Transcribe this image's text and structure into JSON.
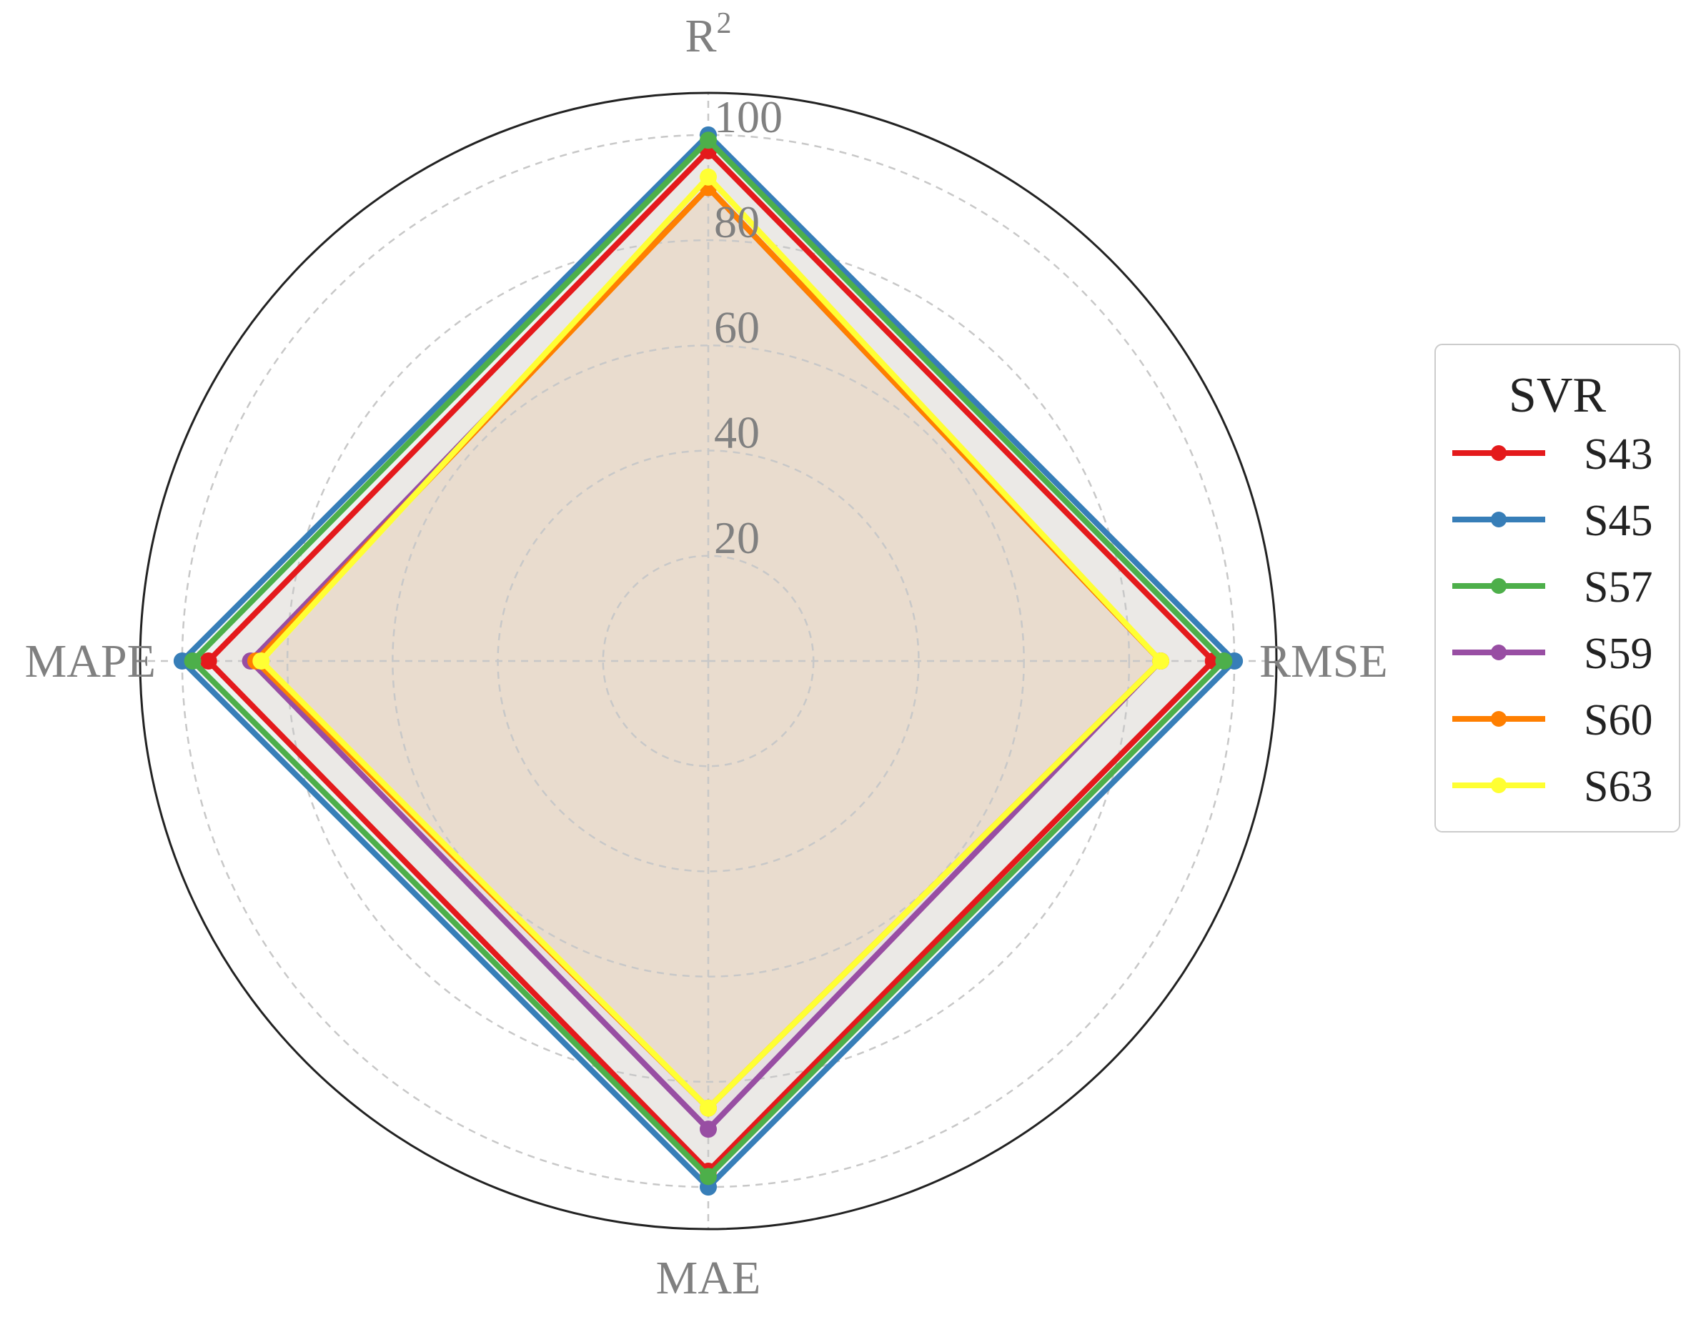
{
  "chart_data": {
    "type": "radar",
    "axes": [
      "R",
      "RMSE",
      "MAE",
      "MAPE"
    ],
    "axis_superscripts": [
      "2",
      "",
      "",
      ""
    ],
    "rlim": [
      0,
      108
    ],
    "rticks": [
      20,
      40,
      60,
      80,
      100
    ],
    "rtick_labels": [
      "20",
      "40",
      "60",
      "80",
      "100"
    ],
    "grid": true,
    "legend": {
      "title": "SVR",
      "placement": "right"
    },
    "series": [
      {
        "name": "S43",
        "color": "#e41a1c",
        "values": [
          97,
          96,
          97,
          95
        ]
      },
      {
        "name": "S45",
        "color": "#377eb8",
        "values": [
          100,
          100,
          100,
          100
        ]
      },
      {
        "name": "S57",
        "color": "#4daf4a",
        "values": [
          99,
          98,
          98,
          98
        ]
      },
      {
        "name": "S59",
        "color": "#984ea3",
        "values": [
          90,
          86,
          89,
          87
        ]
      },
      {
        "name": "S60",
        "color": "#ff7f00",
        "values": [
          90,
          86,
          85,
          86
        ]
      },
      {
        "name": "S63",
        "color": "#ffff33",
        "values": [
          92,
          86,
          85,
          85
        ]
      }
    ]
  }
}
